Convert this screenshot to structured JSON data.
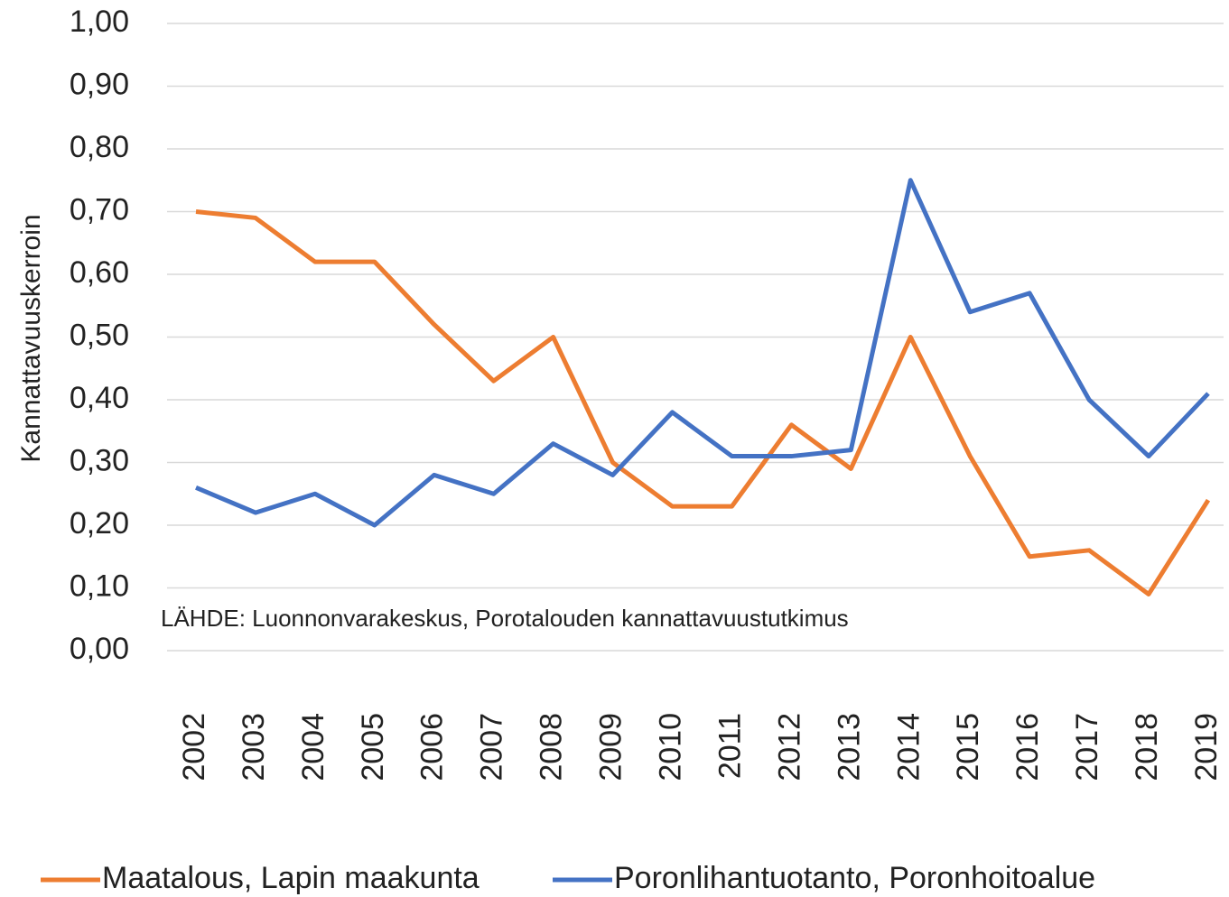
{
  "chart_data": {
    "type": "line",
    "y_label": "Kannattavuuskerroin",
    "annotation": "LÄHDE: Luonnonvarakeskus, Porotalouden kannattavuustutkimus",
    "categories": [
      "2002",
      "2003",
      "2004",
      "2005",
      "2006",
      "2007",
      "2008",
      "2009",
      "2010",
      "2011",
      "2012",
      "2013",
      "2014",
      "2015",
      "2016",
      "2017",
      "2018",
      "2019"
    ],
    "series": [
      {
        "name": "Maatalous, Lapin maakunta",
        "color": "#ed7d31",
        "values": [
          0.7,
          0.69,
          0.62,
          0.62,
          0.52,
          0.43,
          0.5,
          0.3,
          0.23,
          0.23,
          0.36,
          0.29,
          0.5,
          0.31,
          0.15,
          0.16,
          0.09,
          0.24
        ]
      },
      {
        "name": "Poronlihantuotanto, Poronhoitoalue",
        "color": "#4472c4",
        "values": [
          0.26,
          0.22,
          0.25,
          0.2,
          0.28,
          0.25,
          0.33,
          0.28,
          0.38,
          0.31,
          0.31,
          0.32,
          0.75,
          0.54,
          0.57,
          0.4,
          0.31,
          0.41
        ]
      }
    ],
    "ylim": [
      0,
      1
    ],
    "yticks": [
      {
        "value": 0,
        "label": "0,00"
      },
      {
        "value": 0.1,
        "label": "0,10"
      },
      {
        "value": 0.2,
        "label": "0,20"
      },
      {
        "value": 0.3,
        "label": "0,30"
      },
      {
        "value": 0.4,
        "label": "0,40"
      },
      {
        "value": 0.5,
        "label": "0,50"
      },
      {
        "value": 0.6,
        "label": "0,60"
      },
      {
        "value": 0.7,
        "label": "0,70"
      },
      {
        "value": 0.8,
        "label": "0,80"
      },
      {
        "value": 0.9,
        "label": "0,90"
      },
      {
        "value": 1,
        "label": "1,00"
      }
    ],
    "grid": true,
    "legend": "bottom"
  }
}
